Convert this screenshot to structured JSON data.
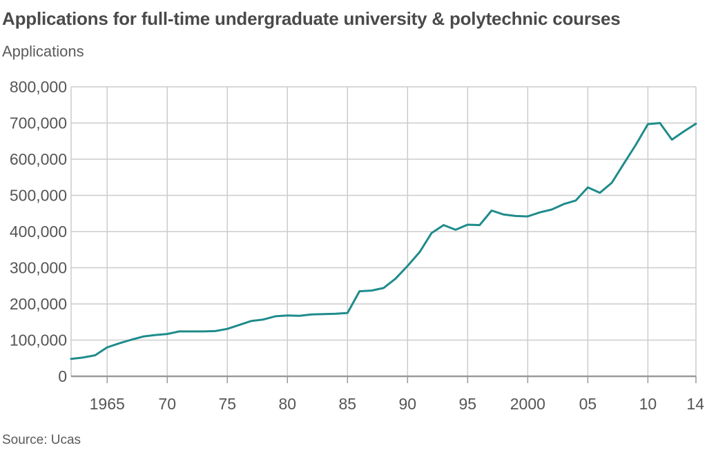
{
  "chart_data": {
    "type": "line",
    "title": "Applications for full-time undergraduate university & polytechnic courses",
    "ylabel": "Applications",
    "source": "Source: Ucas",
    "xlim": [
      1962,
      2014
    ],
    "ylim": [
      0,
      800000
    ],
    "grid": true,
    "line_color": "#1f8b8b",
    "y_ticks": [
      {
        "value": 0,
        "label": "0"
      },
      {
        "value": 100000,
        "label": "100,000"
      },
      {
        "value": 200000,
        "label": "200,000"
      },
      {
        "value": 300000,
        "label": "300,000"
      },
      {
        "value": 400000,
        "label": "400,000"
      },
      {
        "value": 500000,
        "label": "500,000"
      },
      {
        "value": 600000,
        "label": "600,000"
      },
      {
        "value": 700000,
        "label": "700,000"
      },
      {
        "value": 800000,
        "label": "800,000"
      }
    ],
    "x_ticks": [
      {
        "value": 1965,
        "label": "1965"
      },
      {
        "value": 1970,
        "label": "70"
      },
      {
        "value": 1975,
        "label": "75"
      },
      {
        "value": 1980,
        "label": "80"
      },
      {
        "value": 1985,
        "label": "85"
      },
      {
        "value": 1990,
        "label": "90"
      },
      {
        "value": 1995,
        "label": "95"
      },
      {
        "value": 2000,
        "label": "2000"
      },
      {
        "value": 2005,
        "label": "05"
      },
      {
        "value": 2010,
        "label": "10"
      },
      {
        "value": 2014,
        "label": "14"
      }
    ],
    "series": [
      {
        "x": [
          1962,
          1963,
          1964,
          1965,
          1966,
          1967,
          1968,
          1969,
          1970,
          1971,
          1972,
          1973,
          1974,
          1975,
          1976,
          1977,
          1978,
          1979,
          1980,
          1981,
          1982,
          1983,
          1984,
          1985,
          1986,
          1987,
          1988,
          1989,
          1990,
          1991,
          1992,
          1993,
          1994,
          1995,
          1996,
          1997,
          1998,
          1999,
          2000,
          2001,
          2002,
          2003,
          2004,
          2005,
          2006,
          2007,
          2008,
          2009,
          2010,
          2011,
          2012,
          2013,
          2014
        ],
        "values": [
          48000,
          52000,
          58000,
          80000,
          91000,
          101000,
          110000,
          114000,
          117000,
          124000,
          124000,
          124000,
          125000,
          131000,
          142000,
          153000,
          157000,
          166000,
          168000,
          167000,
          171000,
          172000,
          173000,
          175000,
          235000,
          237000,
          244000,
          270000,
          305000,
          343000,
          396000,
          418000,
          405000,
          419000,
          418000,
          458000,
          447000,
          443000,
          442000,
          453000,
          461000,
          476000,
          486000,
          522000,
          507000,
          535000,
          588000,
          640000,
          697000,
          700000,
          654000,
          677000,
          698000
        ]
      }
    ]
  }
}
